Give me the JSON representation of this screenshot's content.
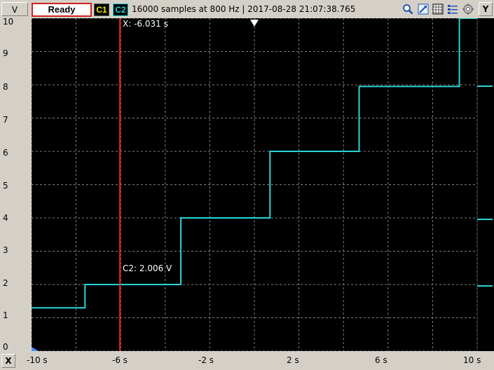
{
  "toolbar": {
    "vertical_button": "V",
    "status_button": "Ready",
    "channel1": "C1",
    "channel2": "C2",
    "status_text": "16000 samples at 800 Hz | 2017-08-28 21:07:38.765",
    "y_button": "Y",
    "icons": [
      "zoom-icon",
      "probe-icon",
      "grid-icon",
      "list-icon",
      "settings-icon"
    ]
  },
  "x_axis": {
    "button": "X",
    "ticks": [
      "-10 s",
      "-6 s",
      "-2 s",
      "2 s",
      "6 s",
      "10 s"
    ]
  },
  "y_axis": {
    "ticks": [
      "10",
      "9",
      "8",
      "7",
      "6",
      "5",
      "4",
      "3",
      "2",
      "1",
      "0"
    ]
  },
  "cursor": {
    "x_readout": "X: -6.031 s",
    "c2_readout": "C2: 2.006 V",
    "x_value": -6.031,
    "color": "#ff2020"
  },
  "colors": {
    "trace": "#27d5d5",
    "marker": "#f0f000",
    "background": "#000000",
    "grid": "#808080"
  },
  "chart_data": {
    "type": "line",
    "xlim": [
      -10,
      10
    ],
    "ylim": [
      0,
      10
    ],
    "grid": true,
    "series": [
      {
        "x": [
          -10,
          -7.6,
          -7.6,
          -3.3,
          -3.3,
          0.7,
          0.7,
          4.7,
          4.7,
          9.2,
          9.2,
          10
        ],
        "y": [
          1.3,
          1.3,
          2.0,
          2.0,
          4.0,
          4.0,
          6.0,
          6.0,
          7.95,
          7.95,
          10.0,
          10.0
        ]
      }
    ]
  }
}
